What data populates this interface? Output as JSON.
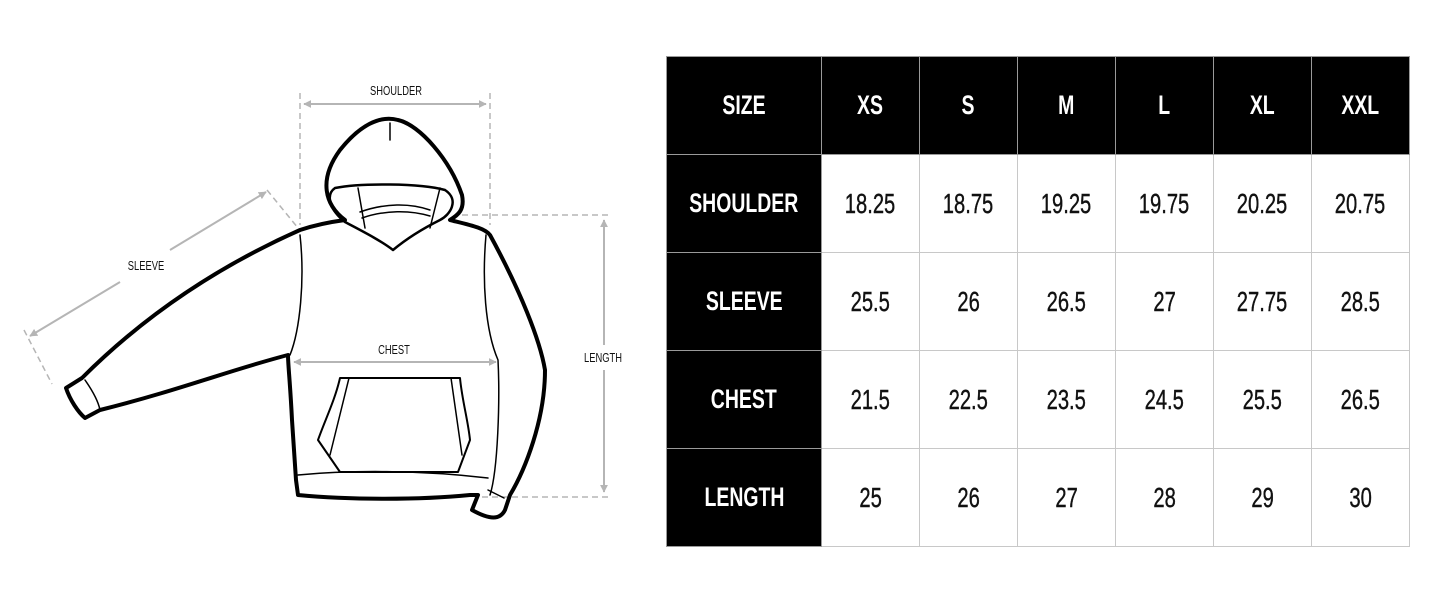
{
  "diagram": {
    "labels": {
      "shoulder": "SHOULDER",
      "sleeve": "SLEEVE",
      "chest": "CHEST",
      "length": "LENGTH"
    },
    "colors": {
      "outline": "#000000",
      "guide": "#b5b5b5"
    }
  },
  "table": {
    "header": [
      "SIZE",
      "XS",
      "S",
      "M",
      "L",
      "XL",
      "XXL"
    ],
    "rows": [
      {
        "label": "SHOULDER",
        "values": [
          "18.25",
          "18.75",
          "19.25",
          "19.75",
          "20.25",
          "20.75"
        ]
      },
      {
        "label": "SLEEVE",
        "values": [
          "25.5",
          "26",
          "26.5",
          "27",
          "27.75",
          "28.5"
        ]
      },
      {
        "label": "CHEST",
        "values": [
          "21.5",
          "22.5",
          "23.5",
          "24.5",
          "25.5",
          "26.5"
        ]
      },
      {
        "label": "LENGTH",
        "values": [
          "25",
          "26",
          "27",
          "28",
          "29",
          "30"
        ]
      }
    ],
    "colors": {
      "header_bg": "#000000",
      "header_text": "#ffffff",
      "cell_bg": "#ffffff",
      "grid": "#c8c8c8"
    }
  }
}
